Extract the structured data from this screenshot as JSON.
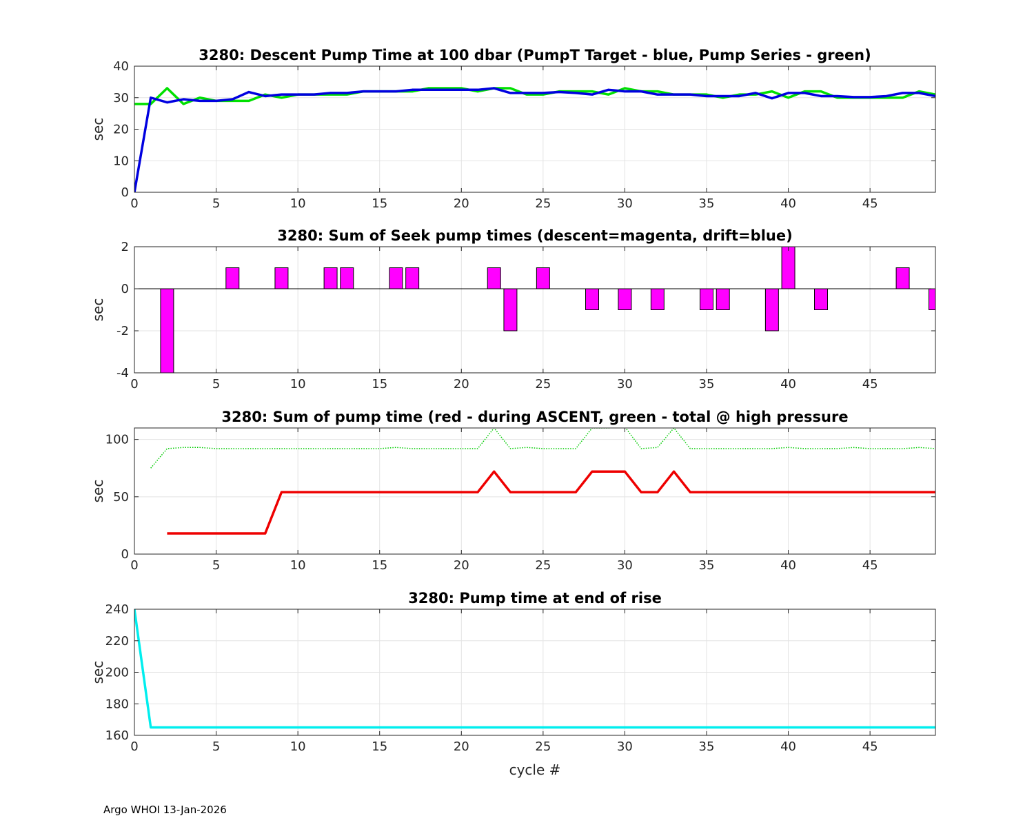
{
  "footer": "Argo WHOI 13-Jan-2026",
  "chart_data": [
    {
      "type": "line",
      "title": "3280: Descent Pump Time at 100 dbar (PumpT Target - blue, Pump Series - green)",
      "xlabel": "",
      "ylabel": "sec",
      "xlim": [
        0,
        49
      ],
      "ylim": [
        0,
        40
      ],
      "xticks": [
        0,
        5,
        10,
        15,
        20,
        25,
        30,
        35,
        40,
        45
      ],
      "yticks": [
        0,
        10,
        20,
        30,
        40
      ],
      "grid": true,
      "series": [
        {
          "color": "#00e000",
          "x": [
            0,
            1,
            2,
            3,
            4,
            5,
            6,
            7,
            8,
            9,
            10,
            11,
            12,
            13,
            14,
            15,
            16,
            17,
            18,
            19,
            20,
            21,
            22,
            23,
            24,
            25,
            26,
            27,
            28,
            29,
            30,
            31,
            32,
            33,
            34,
            35,
            36,
            37,
            38,
            39,
            40,
            41,
            42,
            43,
            44,
            45,
            46,
            47,
            48,
            49
          ],
          "y": [
            28,
            28,
            33,
            28,
            30,
            29,
            29,
            29,
            31,
            30,
            31,
            31,
            31,
            31,
            32,
            32,
            32,
            32,
            33,
            33,
            33,
            32,
            33,
            33,
            31,
            31,
            32,
            32,
            32,
            31,
            33,
            32,
            32,
            31,
            31,
            31,
            30,
            31,
            31,
            32,
            30,
            32,
            32,
            30,
            30,
            30,
            30,
            30,
            32,
            31
          ]
        },
        {
          "color": "#0000e0",
          "x": [
            0,
            1,
            2,
            3,
            4,
            5,
            6,
            7,
            8,
            9,
            10,
            11,
            12,
            13,
            14,
            15,
            16,
            17,
            18,
            19,
            20,
            21,
            22,
            23,
            24,
            25,
            26,
            27,
            28,
            29,
            30,
            31,
            32,
            33,
            34,
            35,
            36,
            37,
            38,
            39,
            40,
            41,
            42,
            43,
            44,
            45,
            46,
            47,
            48,
            49
          ],
          "y": [
            0,
            30,
            28.5,
            29.5,
            29,
            29,
            29.5,
            31.8,
            30.5,
            31,
            31,
            31,
            31.5,
            31.5,
            32,
            32,
            32,
            32.5,
            32.5,
            32.5,
            32.5,
            32.5,
            33,
            31.5,
            31.5,
            31.5,
            31.8,
            31.5,
            31,
            32.5,
            32,
            32,
            31,
            31,
            31,
            30.5,
            30.5,
            30.5,
            31.5,
            29.8,
            31.5,
            31.5,
            30.5,
            30.5,
            30.2,
            30.2,
            30.5,
            31.5,
            31.5,
            30.5
          ]
        }
      ]
    },
    {
      "type": "bar",
      "title": "3280: Sum of Seek pump times (descent=magenta, drift=blue)",
      "xlabel": "",
      "ylabel": "sec",
      "xlim": [
        0,
        49
      ],
      "ylim": [
        -4,
        2
      ],
      "xticks": [
        0,
        5,
        10,
        15,
        20,
        25,
        30,
        35,
        40,
        45
      ],
      "yticks": [
        -4,
        -2,
        0,
        2
      ],
      "grid": true,
      "bar_width": 0.8,
      "color": "#ff00ff",
      "x": [
        2,
        6,
        9,
        12,
        13,
        16,
        17,
        22,
        23,
        25,
        28,
        30,
        32,
        35,
        36,
        39,
        40,
        42,
        47,
        49
      ],
      "values": [
        -4,
        1,
        1,
        1,
        1,
        1,
        1,
        1,
        -2,
        1,
        -1,
        -1,
        -1,
        -1,
        -1,
        -2,
        2,
        -1,
        1,
        -1
      ]
    },
    {
      "type": "line",
      "title": "3280: Sum of pump time (red - during ASCENT, green - total @ high pressure",
      "xlabel": "",
      "ylabel": "sec",
      "xlim": [
        0,
        49
      ],
      "ylim": [
        0,
        110
      ],
      "xticks": [
        0,
        5,
        10,
        15,
        20,
        25,
        30,
        35,
        40,
        45
      ],
      "yticks": [
        0,
        50,
        100
      ],
      "grid": true,
      "series": [
        {
          "color": "#00cc00",
          "style": "dotted",
          "x": [
            1,
            2,
            3,
            4,
            5,
            6,
            7,
            8,
            9,
            10,
            11,
            12,
            13,
            14,
            15,
            16,
            17,
            18,
            19,
            20,
            21,
            22,
            23,
            24,
            25,
            26,
            27,
            28,
            29,
            30,
            31,
            32,
            33,
            34,
            35,
            36,
            37,
            38,
            39,
            40,
            41,
            42,
            43,
            44,
            45,
            46,
            47,
            48,
            49
          ],
          "y": [
            75,
            92,
            93,
            93,
            92,
            92,
            92,
            92,
            92,
            92,
            92,
            92,
            92,
            92,
            92,
            93,
            92,
            92,
            92,
            92,
            92,
            110,
            92,
            93,
            92,
            92,
            92,
            110,
            110,
            111,
            92,
            93,
            110,
            92,
            92,
            92,
            92,
            92,
            92,
            93,
            92,
            92,
            92,
            93,
            92,
            92,
            92,
            93,
            92
          ]
        },
        {
          "color": "#ee0000",
          "x": [
            2,
            3,
            4,
            5,
            6,
            7,
            8,
            9,
            10,
            11,
            12,
            13,
            14,
            15,
            16,
            17,
            18,
            19,
            20,
            21,
            22,
            23,
            24,
            25,
            26,
            27,
            28,
            29,
            30,
            31,
            32,
            33,
            34,
            35,
            36,
            37,
            38,
            39,
            40,
            41,
            42,
            43,
            44,
            45,
            46,
            47,
            48,
            49
          ],
          "y": [
            18,
            18,
            18,
            18,
            18,
            18,
            18,
            54,
            54,
            54,
            54,
            54,
            54,
            54,
            54,
            54,
            54,
            54,
            54,
            54,
            72,
            54,
            54,
            54,
            54,
            54,
            72,
            72,
            72,
            54,
            54,
            72,
            54,
            54,
            54,
            54,
            54,
            54,
            54,
            54,
            54,
            54,
            54,
            54,
            54,
            54,
            54,
            54
          ]
        }
      ]
    },
    {
      "type": "line",
      "title": "3280: Pump time at end of rise",
      "xlabel": "cycle #",
      "ylabel": "sec",
      "xlim": [
        0,
        49
      ],
      "ylim": [
        160,
        240
      ],
      "xticks": [
        0,
        5,
        10,
        15,
        20,
        25,
        30,
        35,
        40,
        45
      ],
      "yticks": [
        160,
        180,
        200,
        220,
        240
      ],
      "grid": true,
      "series": [
        {
          "color": "#00eeee",
          "x": [
            0,
            1,
            2,
            3,
            4,
            5,
            6,
            7,
            8,
            9,
            10,
            11,
            12,
            13,
            14,
            15,
            16,
            17,
            18,
            19,
            20,
            21,
            22,
            23,
            24,
            25,
            26,
            27,
            28,
            29,
            30,
            31,
            32,
            33,
            34,
            35,
            36,
            37,
            38,
            39,
            40,
            41,
            42,
            43,
            44,
            45,
            46,
            47,
            48,
            49
          ],
          "y": [
            240,
            165,
            165,
            165,
            165,
            165,
            165,
            165,
            165,
            165,
            165,
            165,
            165,
            165,
            165,
            165,
            165,
            165,
            165,
            165,
            165,
            165,
            165,
            165,
            165,
            165,
            165,
            165,
            165,
            165,
            165,
            165,
            165,
            165,
            165,
            165,
            165,
            165,
            165,
            165,
            165,
            165,
            165,
            165,
            165,
            165,
            165,
            165,
            165,
            165
          ]
        }
      ]
    }
  ]
}
